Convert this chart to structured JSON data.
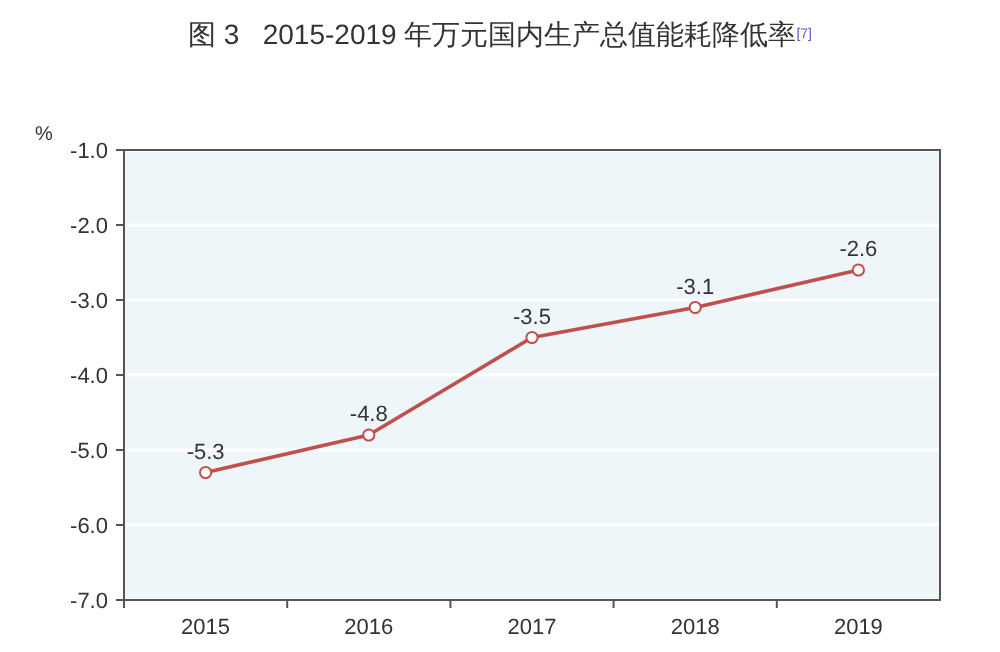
{
  "chart_data": {
    "type": "line",
    "title": "图 3   2015-2019 年万元国内生产总值能耗降低率$^{[7]}$",
    "ylabel": "%",
    "categories": [
      "2015",
      "2016",
      "2017",
      "2018",
      "2019"
    ],
    "series": [
      {
        "color": "#c0504d",
        "values": [
          -5.3,
          -4.8,
          -3.5,
          -3.1,
          -2.6
        ]
      }
    ],
    "ylim": [
      -7,
      -1
    ],
    "yticks": [
      {
        "value": -7,
        "label": "-7.0"
      },
      {
        "value": -6,
        "label": "-6.0"
      },
      {
        "value": -5,
        "label": "-5.0"
      },
      {
        "value": -4,
        "label": "-4.0"
      },
      {
        "value": -3,
        "label": "-3.0"
      },
      {
        "value": -2,
        "label": "-2.0"
      },
      {
        "value": -1,
        "label": "-1.0"
      }
    ],
    "grid": "y",
    "marker": "circle",
    "data_labels": true
  }
}
